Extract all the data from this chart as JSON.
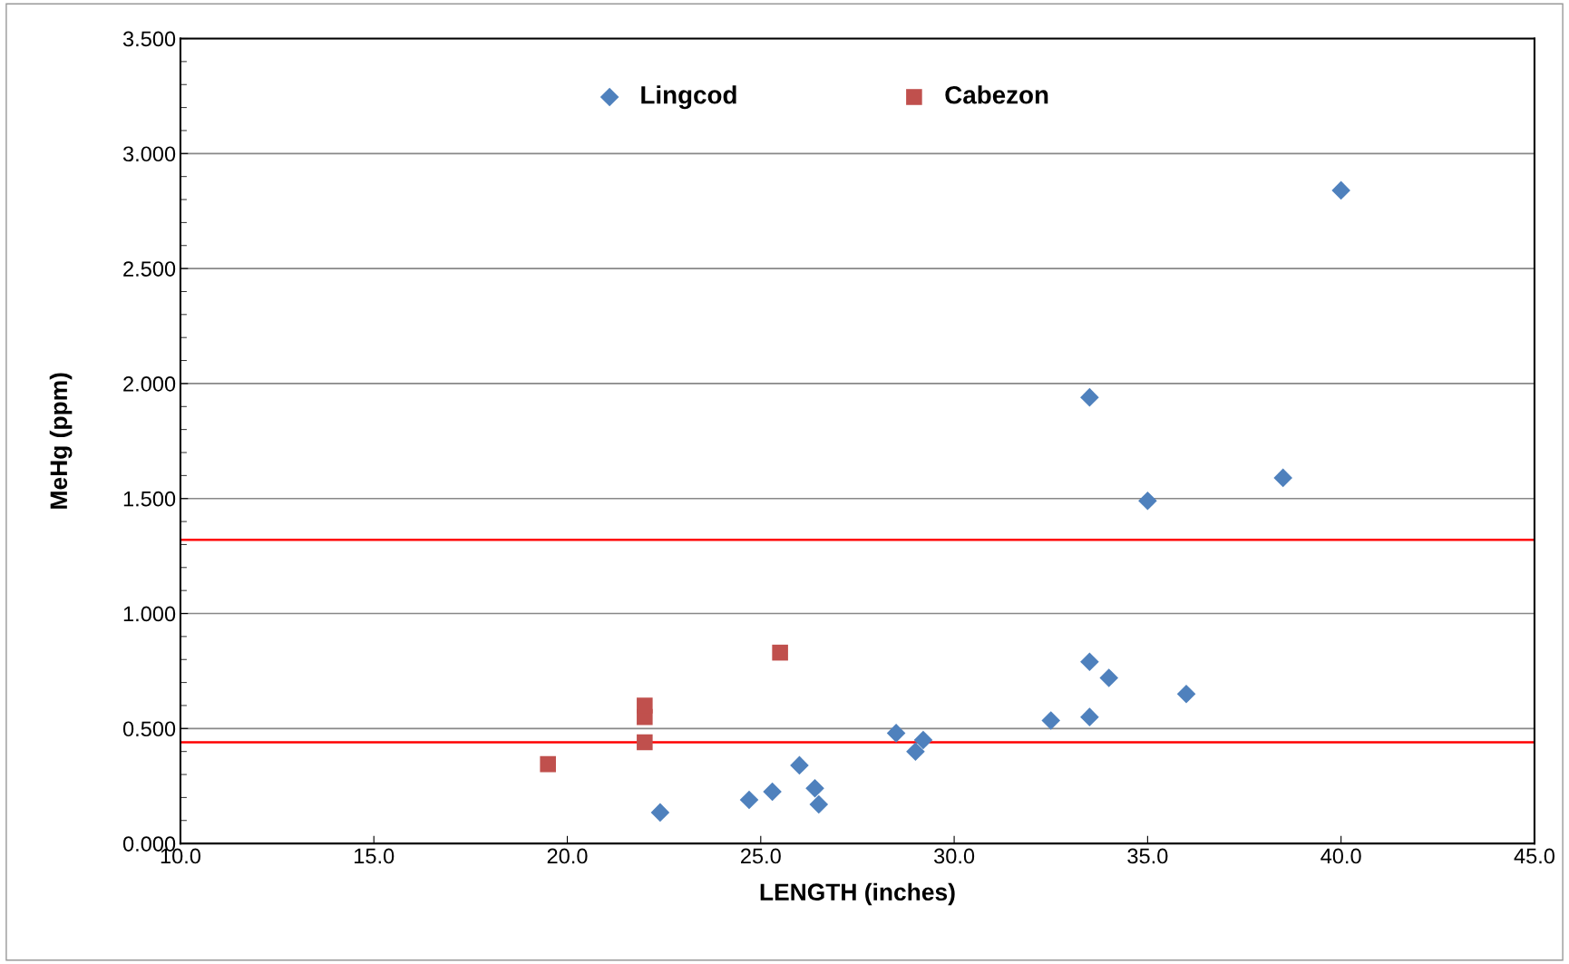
{
  "chart_data": {
    "type": "scatter",
    "xlabel": "LENGTH (inches)",
    "ylabel": "MeHg (ppm)",
    "xlim": [
      10,
      45
    ],
    "xticks": [
      {
        "value": 10,
        "label": "10.0"
      },
      {
        "value": 15,
        "label": "15.0"
      },
      {
        "value": 20,
        "label": "20.0"
      },
      {
        "value": 25,
        "label": "25.0"
      },
      {
        "value": 30,
        "label": "30.0"
      },
      {
        "value": 35,
        "label": "35.0"
      },
      {
        "value": 40,
        "label": "40.0"
      },
      {
        "value": 45,
        "label": "45.0"
      }
    ],
    "ylim": [
      0,
      3.5
    ],
    "yticks": [
      {
        "value": 0,
        "label": "0.000"
      },
      {
        "value": 0.5,
        "label": "0.500"
      },
      {
        "value": 1,
        "label": "1.000"
      },
      {
        "value": 1.5,
        "label": "1.500"
      },
      {
        "value": 2,
        "label": "2.000"
      },
      {
        "value": 2.5,
        "label": "2.500"
      },
      {
        "value": 3,
        "label": "3.000"
      },
      {
        "value": 3.5,
        "label": "3.500"
      }
    ],
    "grid": "y",
    "legend": "top",
    "ref_lines": [
      {
        "axis": "y",
        "value": 1.32,
        "color": "#ff0000"
      },
      {
        "axis": "y",
        "value": 0.44,
        "color": "#ff0000"
      }
    ],
    "series": [
      {
        "name": "Lingcod",
        "color": "#4f81bd",
        "marker": "diamond",
        "x": [
          22.4,
          24.7,
          25.3,
          26.0,
          26.4,
          26.5,
          28.5,
          29.0,
          29.2,
          32.5,
          33.5,
          33.5,
          33.5,
          34.0,
          35.0,
          36.0,
          38.5,
          40.0
        ],
        "values": [
          0.135,
          0.19,
          0.225,
          0.34,
          0.24,
          0.17,
          0.48,
          0.4,
          0.45,
          0.535,
          0.79,
          0.55,
          1.94,
          0.72,
          1.49,
          0.65,
          1.59,
          2.84
        ]
      },
      {
        "name": "Cabezon",
        "color": "#c0504d",
        "marker": "square",
        "x": [
          19.5,
          22.0,
          22.0,
          22.0,
          25.5
        ],
        "values": [
          0.345,
          0.44,
          0.55,
          0.6,
          0.83
        ]
      }
    ]
  }
}
